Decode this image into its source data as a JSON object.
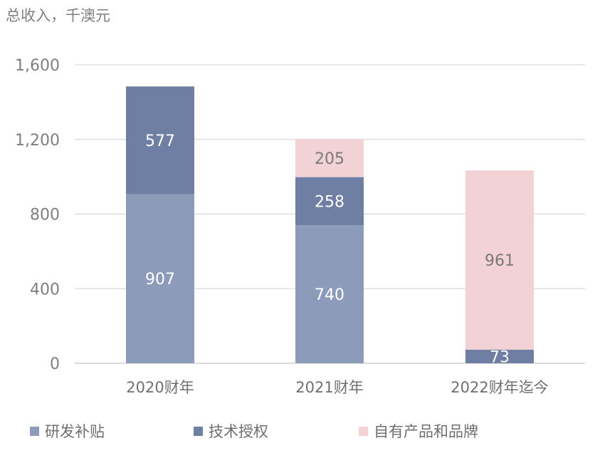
{
  "chart_data": {
    "type": "bar",
    "stacked": true,
    "title": "",
    "ylabel": "总收入，千澳元",
    "xlabel": "",
    "ylim": [
      0,
      1600
    ],
    "yticks": [
      "0",
      "400",
      "800",
      "1,200",
      "1,600"
    ],
    "ytick_values": [
      0,
      400,
      800,
      1200,
      1600
    ],
    "categories": [
      "2020财年",
      "2021财年",
      "2022财年迄今"
    ],
    "series": [
      {
        "name": "研发补贴",
        "color": "#8b9bb9",
        "values": [
          907,
          740,
          0
        ],
        "labels": [
          "907",
          "740",
          ""
        ]
      },
      {
        "name": "技术授权",
        "color": "#6f7fa3",
        "values": [
          577,
          258,
          73
        ],
        "labels": [
          "577",
          "258",
          "73"
        ]
      },
      {
        "name": "自有产品和品牌",
        "color": "#f3d2d6",
        "values": [
          0,
          205,
          961
        ],
        "labels": [
          "",
          "205",
          "961"
        ]
      }
    ],
    "grid": true,
    "legend_position": "bottom"
  }
}
